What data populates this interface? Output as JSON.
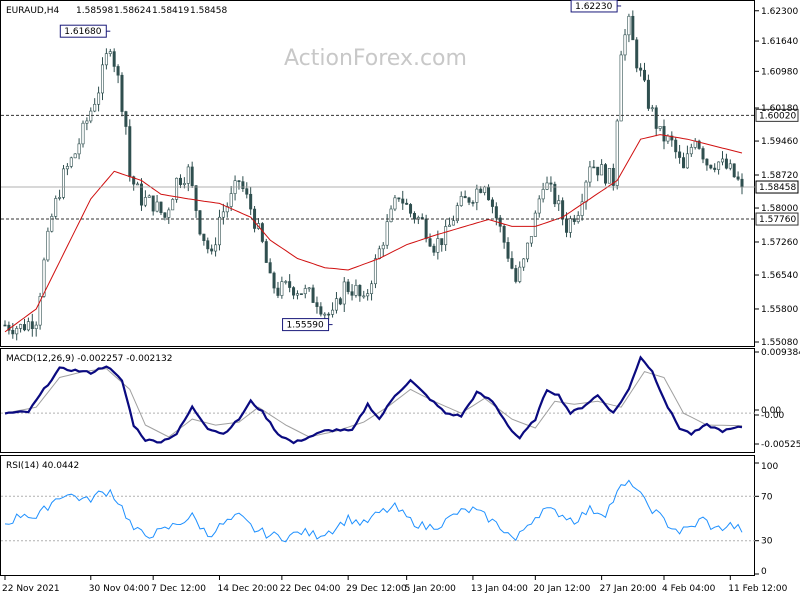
{
  "chart_data": {
    "type": "line",
    "title": "EURAUD,H4",
    "ohlc": {
      "open": "1.58598",
      "high": "1.58624",
      "low": "1.58419",
      "close": "1.58458"
    },
    "watermark": "ActionForex.com",
    "price_axis": {
      "min": 1.5508,
      "max": 1.6236,
      "ticks": [
        "1.62300",
        "1.61640",
        "1.60980",
        "1.60180",
        "1.59460",
        "1.58720",
        "1.58000",
        "1.57260",
        "1.56540",
        "1.55800",
        "1.55080"
      ],
      "tick_values": [
        1.623,
        1.6164,
        1.6098,
        1.6018,
        1.5946,
        1.5872,
        1.58,
        1.5726,
        1.5654,
        1.558,
        1.5508
      ]
    },
    "levels": [
      {
        "value": 1.6002,
        "label": "1.60020"
      },
      {
        "value": 1.5776,
        "label": "1.57760"
      }
    ],
    "current_price": {
      "value": 1.58458,
      "label": "1.58458"
    },
    "annotations": [
      {
        "label": "1.61680",
        "value": 1.6168,
        "bar": 27
      },
      {
        "label": "1.55590",
        "value": 1.5559,
        "bar": 84
      },
      {
        "label": "1.62230",
        "value": 1.6223,
        "bar": 158
      }
    ],
    "x_labels": [
      "22 Nov 2021",
      "30 Nov 04:00",
      "7 Dec 12:00",
      "14 Dec 20:00",
      "22 Dec 04:00",
      "29 Dec 12:00",
      "5 Jan 20:00",
      "13 Jan 04:00",
      "20 Jan 12:00",
      "27 Jan 20:00",
      "4 Feb 04:00",
      "11 Feb 12:00"
    ],
    "x_label_bars": [
      0,
      22,
      38,
      55,
      71,
      88,
      103,
      120,
      136,
      153,
      169,
      186
    ],
    "bars": 190,
    "anchors": [
      [
        0,
        1.5545
      ],
      [
        4,
        1.554
      ],
      [
        8,
        1.556
      ],
      [
        10,
        1.568
      ],
      [
        12,
        1.578
      ],
      [
        15,
        1.587
      ],
      [
        18,
        1.592
      ],
      [
        21,
        1.599
      ],
      [
        24,
        1.606
      ],
      [
        27,
        1.616
      ],
      [
        29,
        1.608
      ],
      [
        31,
        1.598
      ],
      [
        32,
        1.587
      ],
      [
        35,
        1.582
      ],
      [
        38,
        1.581
      ],
      [
        41,
        1.578
      ],
      [
        44,
        1.586
      ],
      [
        47,
        1.588
      ],
      [
        50,
        1.576
      ],
      [
        53,
        1.569
      ],
      [
        55,
        1.578
      ],
      [
        58,
        1.582
      ],
      [
        60,
        1.586
      ],
      [
        63,
        1.58
      ],
      [
        66,
        1.572
      ],
      [
        68,
        1.564
      ],
      [
        70,
        1.562
      ],
      [
        73,
        1.563
      ],
      [
        76,
        1.562
      ],
      [
        80,
        1.56
      ],
      [
        82,
        1.5575
      ],
      [
        84,
        1.5562
      ],
      [
        87,
        1.563
      ],
      [
        90,
        1.562
      ],
      [
        92,
        1.559
      ],
      [
        95,
        1.568
      ],
      [
        98,
        1.576
      ],
      [
        101,
        1.583
      ],
      [
        104,
        1.579
      ],
      [
        107,
        1.577
      ],
      [
        110,
        1.572
      ],
      [
        113,
        1.574
      ],
      [
        116,
        1.58
      ],
      [
        120,
        1.583
      ],
      [
        123,
        1.586
      ],
      [
        126,
        1.578
      ],
      [
        129,
        1.57
      ],
      [
        131,
        1.564
      ],
      [
        133,
        1.568
      ],
      [
        136,
        1.578
      ],
      [
        138,
        1.586
      ],
      [
        141,
        1.582
      ],
      [
        144,
        1.576
      ],
      [
        147,
        1.58
      ],
      [
        150,
        1.59
      ],
      [
        153,
        1.588
      ],
      [
        156,
        1.586
      ],
      [
        158,
        1.615
      ],
      [
        160,
        1.62
      ],
      [
        162,
        1.612
      ],
      [
        165,
        1.603
      ],
      [
        168,
        1.596
      ],
      [
        171,
        1.594
      ],
      [
        174,
        1.588
      ],
      [
        177,
        1.596
      ],
      [
        180,
        1.59
      ],
      [
        183,
        1.59
      ],
      [
        186,
        1.588
      ],
      [
        189,
        1.5846
      ]
    ],
    "ma_anchors": [
      [
        0,
        1.553
      ],
      [
        8,
        1.558
      ],
      [
        15,
        1.57
      ],
      [
        22,
        1.582
      ],
      [
        28,
        1.588
      ],
      [
        35,
        1.586
      ],
      [
        40,
        1.583
      ],
      [
        47,
        1.582
      ],
      [
        55,
        1.581
      ],
      [
        63,
        1.578
      ],
      [
        68,
        1.573
      ],
      [
        75,
        1.569
      ],
      [
        82,
        1.567
      ],
      [
        88,
        1.5665
      ],
      [
        96,
        1.569
      ],
      [
        103,
        1.572
      ],
      [
        110,
        1.574
      ],
      [
        118,
        1.576
      ],
      [
        124,
        1.5775
      ],
      [
        130,
        1.576
      ],
      [
        136,
        1.576
      ],
      [
        143,
        1.578
      ],
      [
        150,
        1.582
      ],
      [
        157,
        1.586
      ],
      [
        163,
        1.595
      ],
      [
        168,
        1.596
      ],
      [
        175,
        1.595
      ],
      [
        182,
        1.5935
      ],
      [
        189,
        1.592
      ]
    ],
    "macd": {
      "label": "MACD(12,26,9) -0.002257 -0.002132",
      "ticks": [
        "0.009384",
        "0.00",
        "-0.00",
        "-0.005252"
      ],
      "tick_values": [
        0.009384,
        0.0003,
        -0.0003,
        -0.005252
      ],
      "min": -0.0062,
      "max": 0.0103,
      "anchors": [
        [
          0,
          0.0
        ],
        [
          6,
          0.0002
        ],
        [
          10,
          0.004
        ],
        [
          14,
          0.0075
        ],
        [
          18,
          0.0072
        ],
        [
          22,
          0.0068
        ],
        [
          26,
          0.008
        ],
        [
          30,
          0.0055
        ],
        [
          33,
          -0.002
        ],
        [
          36,
          -0.0045
        ],
        [
          40,
          -0.0048
        ],
        [
          44,
          -0.0035
        ],
        [
          48,
          0.001
        ],
        [
          52,
          -0.0025
        ],
        [
          56,
          -0.0035
        ],
        [
          60,
          -0.001
        ],
        [
          63,
          0.002
        ],
        [
          66,
          0.0002
        ],
        [
          70,
          -0.0035
        ],
        [
          74,
          -0.005
        ],
        [
          78,
          -0.004
        ],
        [
          82,
          -0.003
        ],
        [
          85,
          -0.0028
        ],
        [
          89,
          -0.003
        ],
        [
          93,
          0.0015
        ],
        [
          96,
          -0.001
        ],
        [
          100,
          0.003
        ],
        [
          104,
          0.0055
        ],
        [
          108,
          0.003
        ],
        [
          113,
          0.0
        ],
        [
          117,
          -0.0005
        ],
        [
          121,
          0.0035
        ],
        [
          125,
          0.002
        ],
        [
          130,
          -0.003
        ],
        [
          132,
          -0.0042
        ],
        [
          136,
          -0.001
        ],
        [
          139,
          0.004
        ],
        [
          142,
          0.003
        ],
        [
          145,
          0.0
        ],
        [
          148,
          0.001
        ],
        [
          152,
          0.003
        ],
        [
          156,
          0.0
        ],
        [
          160,
          0.004
        ],
        [
          163,
          0.0095
        ],
        [
          166,
          0.007
        ],
        [
          170,
          0.001
        ],
        [
          173,
          -0.0025
        ],
        [
          176,
          -0.0035
        ],
        [
          180,
          -0.002
        ],
        [
          184,
          -0.003
        ],
        [
          189,
          -0.0023
        ]
      ],
      "signal_anchors": [
        [
          0,
          0.0
        ],
        [
          8,
          0.001
        ],
        [
          14,
          0.006
        ],
        [
          20,
          0.007
        ],
        [
          26,
          0.0075
        ],
        [
          32,
          0.004
        ],
        [
          36,
          -0.002
        ],
        [
          42,
          -0.004
        ],
        [
          48,
          -0.001
        ],
        [
          54,
          -0.002
        ],
        [
          60,
          -0.0015
        ],
        [
          65,
          0.001
        ],
        [
          72,
          -0.002
        ],
        [
          78,
          -0.004
        ],
        [
          85,
          -0.003
        ],
        [
          92,
          -0.0015
        ],
        [
          98,
          0.001
        ],
        [
          104,
          0.004
        ],
        [
          110,
          0.002
        ],
        [
          117,
          0.0
        ],
        [
          123,
          0.0025
        ],
        [
          130,
          -0.001
        ],
        [
          136,
          -0.0025
        ],
        [
          141,
          0.002
        ],
        [
          146,
          0.0015
        ],
        [
          152,
          0.002
        ],
        [
          158,
          0.001
        ],
        [
          164,
          0.007
        ],
        [
          169,
          0.006
        ],
        [
          174,
          0.0
        ],
        [
          180,
          -0.002
        ],
        [
          189,
          -0.0021
        ]
      ]
    },
    "rsi": {
      "label": "RSI(14) 40.0442",
      "ticks": [
        "100",
        "70",
        "30",
        "0"
      ],
      "tick_values": [
        100,
        70,
        30,
        0
      ],
      "min": 0,
      "max": 100,
      "levels": [
        70,
        30
      ],
      "anchors": [
        [
          0,
          45
        ],
        [
          5,
          55
        ],
        [
          8,
          50
        ],
        [
          12,
          65
        ],
        [
          15,
          72
        ],
        [
          18,
          70
        ],
        [
          21,
          66
        ],
        [
          24,
          72
        ],
        [
          27,
          75
        ],
        [
          30,
          60
        ],
        [
          33,
          40
        ],
        [
          36,
          35
        ],
        [
          40,
          38
        ],
        [
          44,
          45
        ],
        [
          48,
          52
        ],
        [
          52,
          35
        ],
        [
          56,
          45
        ],
        [
          60,
          52
        ],
        [
          64,
          40
        ],
        [
          68,
          35
        ],
        [
          72,
          33
        ],
        [
          76,
          38
        ],
        [
          80,
          35
        ],
        [
          84,
          40
        ],
        [
          88,
          50
        ],
        [
          92,
          45
        ],
        [
          96,
          55
        ],
        [
          100,
          60
        ],
        [
          104,
          48
        ],
        [
          108,
          42
        ],
        [
          112,
          45
        ],
        [
          116,
          55
        ],
        [
          120,
          58
        ],
        [
          124,
          50
        ],
        [
          128,
          40
        ],
        [
          131,
          30
        ],
        [
          134,
          45
        ],
        [
          138,
          58
        ],
        [
          142,
          55
        ],
        [
          146,
          48
        ],
        [
          150,
          58
        ],
        [
          154,
          55
        ],
        [
          158,
          78
        ],
        [
          161,
          82
        ],
        [
          164,
          65
        ],
        [
          167,
          55
        ],
        [
          170,
          45
        ],
        [
          173,
          38
        ],
        [
          176,
          42
        ],
        [
          179,
          50
        ],
        [
          182,
          40
        ],
        [
          186,
          44
        ],
        [
          189,
          40
        ]
      ]
    }
  }
}
